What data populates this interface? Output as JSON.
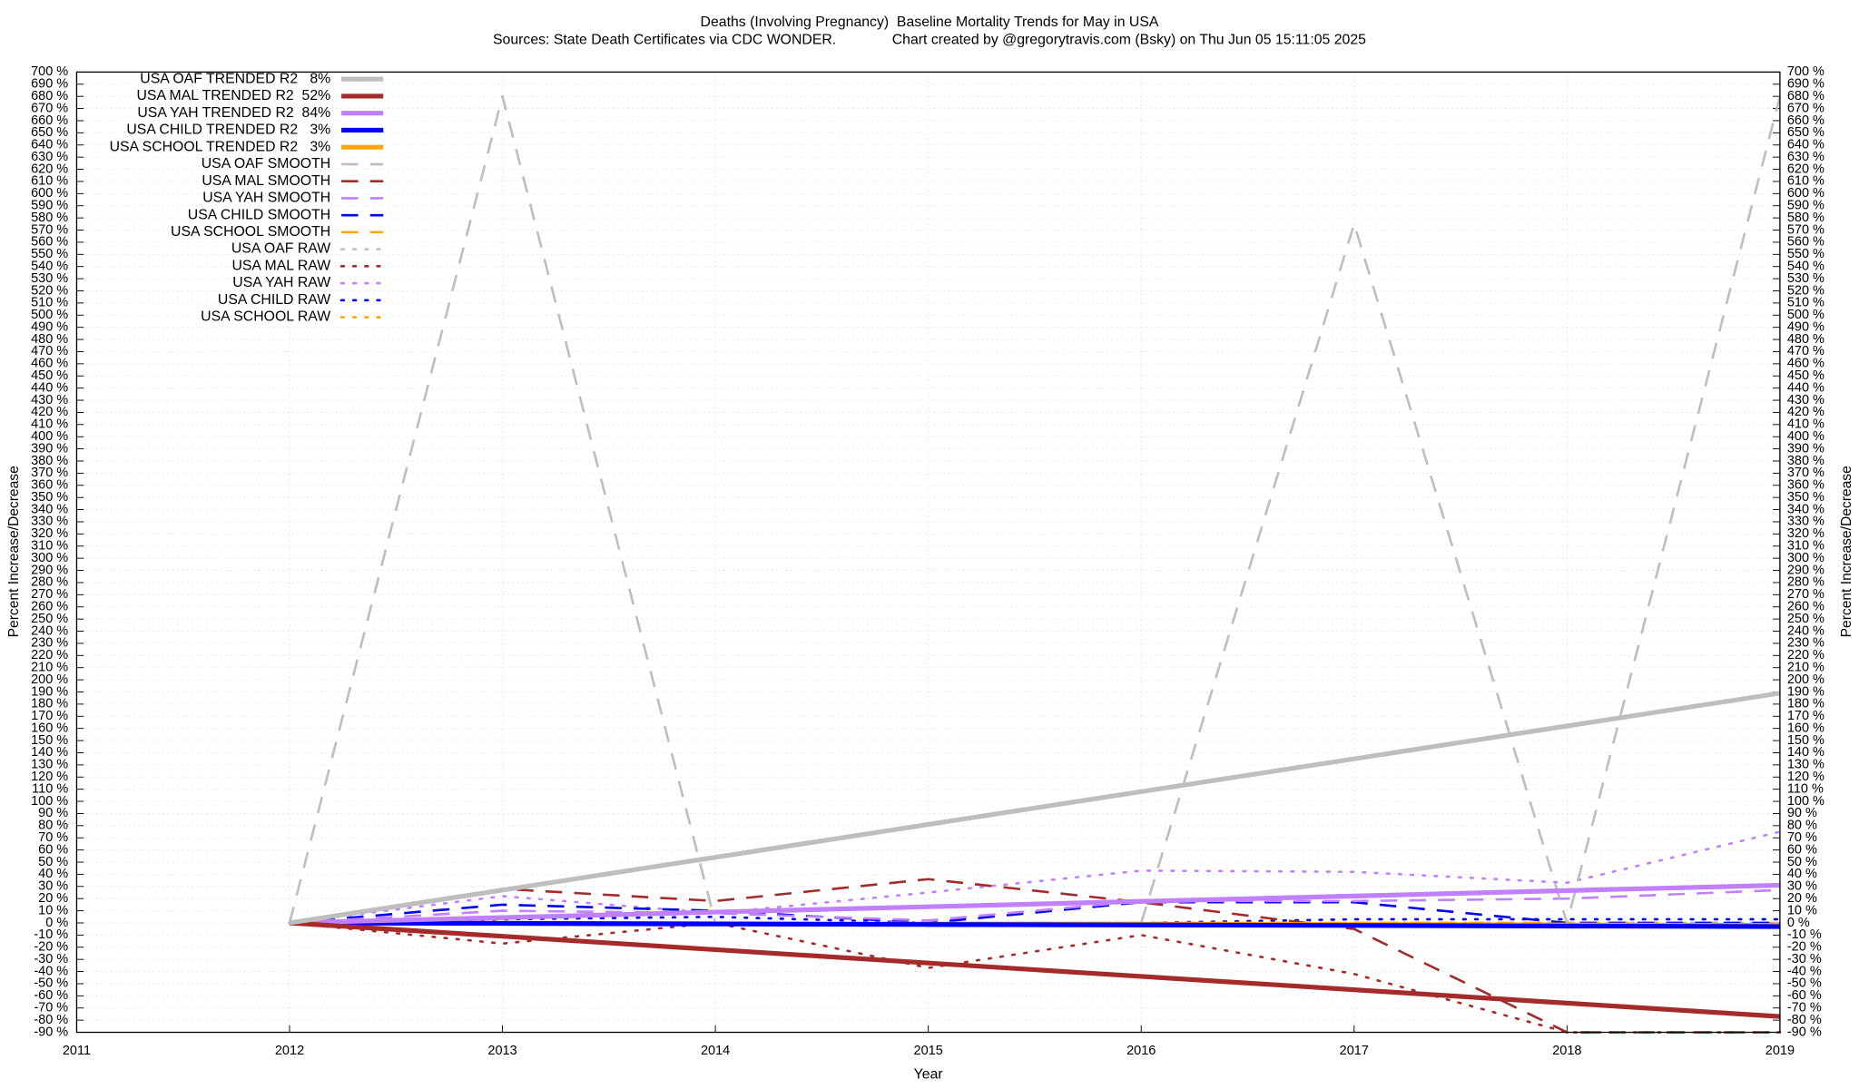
{
  "chart_data": {
    "type": "line",
    "title": "Deaths (Involving Pregnancy)  Baseline Mortality Trends for May in USA",
    "subtitle": "Sources: State Death Certificates via CDC WONDER.              Chart created by @gregorytravis.com (Bsky) on Thu Jun 05 15:11:05 2025",
    "xlabel": "Year",
    "ylabel": "Percent Increase/Decrease",
    "x": [
      2012,
      2013,
      2014,
      2015,
      2016,
      2017,
      2018,
      2019
    ],
    "xlim": [
      2011,
      2019
    ],
    "xticks": [
      2011,
      2012,
      2013,
      2014,
      2015,
      2016,
      2017,
      2018,
      2019
    ],
    "ylim": [
      -90,
      700
    ],
    "yticks": [
      {
        "value": -90,
        "label": "-90 %"
      },
      {
        "value": -80,
        "label": "-80 %"
      },
      {
        "value": -70,
        "label": "-70 %"
      },
      {
        "value": -60,
        "label": "-60 %"
      },
      {
        "value": -50,
        "label": "-50 %"
      },
      {
        "value": -40,
        "label": "-40 %"
      },
      {
        "value": -30,
        "label": "-30 %"
      },
      {
        "value": -20,
        "label": "-20 %"
      },
      {
        "value": -10,
        "label": "-10 %"
      },
      {
        "value": 0,
        "label": "0 %"
      },
      {
        "value": 10,
        "label": "10 %"
      },
      {
        "value": 20,
        "label": "20 %"
      },
      {
        "value": 30,
        "label": "30 %"
      },
      {
        "value": 40,
        "label": "40 %"
      },
      {
        "value": 50,
        "label": "50 %"
      },
      {
        "value": 60,
        "label": "60 %"
      },
      {
        "value": 70,
        "label": "70 %"
      },
      {
        "value": 80,
        "label": "80 %"
      },
      {
        "value": 90,
        "label": "90 %"
      },
      {
        "value": 100,
        "label": "100 %"
      },
      {
        "value": 110,
        "label": "110 %"
      },
      {
        "value": 120,
        "label": "120 %"
      },
      {
        "value": 130,
        "label": "130 %"
      },
      {
        "value": 140,
        "label": "140 %"
      },
      {
        "value": 150,
        "label": "150 %"
      },
      {
        "value": 160,
        "label": "160 %"
      },
      {
        "value": 170,
        "label": "170 %"
      },
      {
        "value": 180,
        "label": "180 %"
      },
      {
        "value": 190,
        "label": "190 %"
      },
      {
        "value": 200,
        "label": "200 %"
      },
      {
        "value": 210,
        "label": "210 %"
      },
      {
        "value": 220,
        "label": "220 %"
      },
      {
        "value": 230,
        "label": "230 %"
      },
      {
        "value": 240,
        "label": "240 %"
      },
      {
        "value": 250,
        "label": "250 %"
      },
      {
        "value": 260,
        "label": "260 %"
      },
      {
        "value": 270,
        "label": "270 %"
      },
      {
        "value": 280,
        "label": "280 %"
      },
      {
        "value": 290,
        "label": "290 %"
      },
      {
        "value": 300,
        "label": "300 %"
      },
      {
        "value": 310,
        "label": "310 %"
      },
      {
        "value": 320,
        "label": "320 %"
      },
      {
        "value": 330,
        "label": "330 %"
      },
      {
        "value": 340,
        "label": "340 %"
      },
      {
        "value": 350,
        "label": "350 %"
      },
      {
        "value": 360,
        "label": "360 %"
      },
      {
        "value": 370,
        "label": "370 %"
      },
      {
        "value": 380,
        "label": "380 %"
      },
      {
        "value": 390,
        "label": "390 %"
      },
      {
        "value": 400,
        "label": "400 %"
      },
      {
        "value": 410,
        "label": "410 %"
      },
      {
        "value": 420,
        "label": "420 %"
      },
      {
        "value": 430,
        "label": "430 %"
      },
      {
        "value": 440,
        "label": "440 %"
      },
      {
        "value": 450,
        "label": "450 %"
      },
      {
        "value": 460,
        "label": "460 %"
      },
      {
        "value": 470,
        "label": "470 %"
      },
      {
        "value": 480,
        "label": "480 %"
      },
      {
        "value": 490,
        "label": "490 %"
      },
      {
        "value": 500,
        "label": "500 %"
      },
      {
        "value": 510,
        "label": "510 %"
      },
      {
        "value": 520,
        "label": "520 %"
      },
      {
        "value": 530,
        "label": "530 %"
      },
      {
        "value": 540,
        "label": "540 %"
      },
      {
        "value": 550,
        "label": "550 %"
      },
      {
        "value": 560,
        "label": "560 %"
      },
      {
        "value": 570,
        "label": "570 %"
      },
      {
        "value": 580,
        "label": "580 %"
      },
      {
        "value": 590,
        "label": "590 %"
      },
      {
        "value": 600,
        "label": "600 %"
      },
      {
        "value": 610,
        "label": "610 %"
      },
      {
        "value": 620,
        "label": "620 %"
      },
      {
        "value": 630,
        "label": "630 %"
      },
      {
        "value": 640,
        "label": "640 %"
      },
      {
        "value": 650,
        "label": "650 %"
      },
      {
        "value": 660,
        "label": "660 %"
      },
      {
        "value": 670,
        "label": "670 %"
      },
      {
        "value": 680,
        "label": "680 %"
      },
      {
        "value": 690,
        "label": "690 %"
      },
      {
        "value": 700,
        "label": "700 %"
      }
    ],
    "grid": true,
    "legend": "top-left",
    "series": [
      {
        "name": "USA OAF TRENDED R2   8%",
        "color": "#bebebe",
        "dash": "solid",
        "values": [
          0,
          27,
          54,
          81,
          108,
          135,
          162,
          189
        ]
      },
      {
        "name": "USA MAL TRENDED R2  52%",
        "color": "#a52a2a",
        "dash": "solid",
        "values": [
          0,
          -11,
          -22,
          -33,
          -44,
          -55,
          -66,
          -77
        ]
      },
      {
        "name": "USA YAH TRENDED R2  84%",
        "color": "#c080ff",
        "dash": "solid",
        "values": [
          0,
          4.4,
          8.9,
          13.3,
          17.7,
          22.1,
          26.6,
          31
        ]
      },
      {
        "name": "USA CHILD TRENDED R2   3%",
        "color": "#0000ff",
        "dash": "solid",
        "values": [
          0,
          -0.4,
          -0.9,
          -1.3,
          -1.7,
          -2.1,
          -2.6,
          -3
        ]
      },
      {
        "name": "USA SCHOOL TRENDED R2   3%",
        "color": "#ffa500",
        "dash": "solid",
        "values": [
          0,
          -0.3,
          -0.6,
          -0.9,
          -1.1,
          -1.4,
          -1.7,
          -2
        ]
      },
      {
        "name": "USA OAF SMOOTH",
        "color": "#bebebe",
        "dash": "dashed",
        "values": [
          0,
          680,
          0,
          0,
          0,
          575,
          0,
          680
        ]
      },
      {
        "name": "USA MAL SMOOTH",
        "color": "#a52a2a",
        "dash": "dashed",
        "values": [
          0,
          28,
          18,
          36,
          17,
          -5,
          -90,
          -90
        ]
      },
      {
        "name": "USA YAH SMOOTH",
        "color": "#c080ff",
        "dash": "dashed",
        "values": [
          0,
          10,
          8,
          2,
          18,
          18,
          20,
          27
        ]
      },
      {
        "name": "USA CHILD SMOOTH",
        "color": "#0000ff",
        "dash": "dashed",
        "values": [
          0,
          15,
          10,
          0,
          17,
          17,
          0,
          0
        ]
      },
      {
        "name": "USA SCHOOL SMOOTH",
        "color": "#ffa500",
        "dash": "dashed",
        "values": [
          0,
          0,
          0,
          0,
          0,
          0,
          0,
          0
        ]
      },
      {
        "name": "USA OAF RAW",
        "color": "#bebebe",
        "dash": "dotted",
        "values": [
          0,
          0,
          0,
          0,
          0,
          0,
          0,
          0
        ]
      },
      {
        "name": "USA MAL RAW",
        "color": "#a52a2a",
        "dash": "dotted",
        "values": [
          0,
          -17,
          0,
          -37,
          -10,
          -42,
          -90,
          -90
        ]
      },
      {
        "name": "USA YAH RAW",
        "color": "#c080ff",
        "dash": "dotted",
        "values": [
          0,
          22,
          8,
          25,
          43,
          42,
          33,
          75
        ]
      },
      {
        "name": "USA CHILD RAW",
        "color": "#0000ff",
        "dash": "dotted",
        "values": [
          0,
          3,
          5,
          0,
          0,
          3,
          3,
          3
        ]
      },
      {
        "name": "USA SCHOOL RAW",
        "color": "#ffa500",
        "dash": "dotted",
        "values": [
          0,
          0,
          0,
          0,
          0,
          0,
          0,
          0
        ]
      }
    ]
  }
}
